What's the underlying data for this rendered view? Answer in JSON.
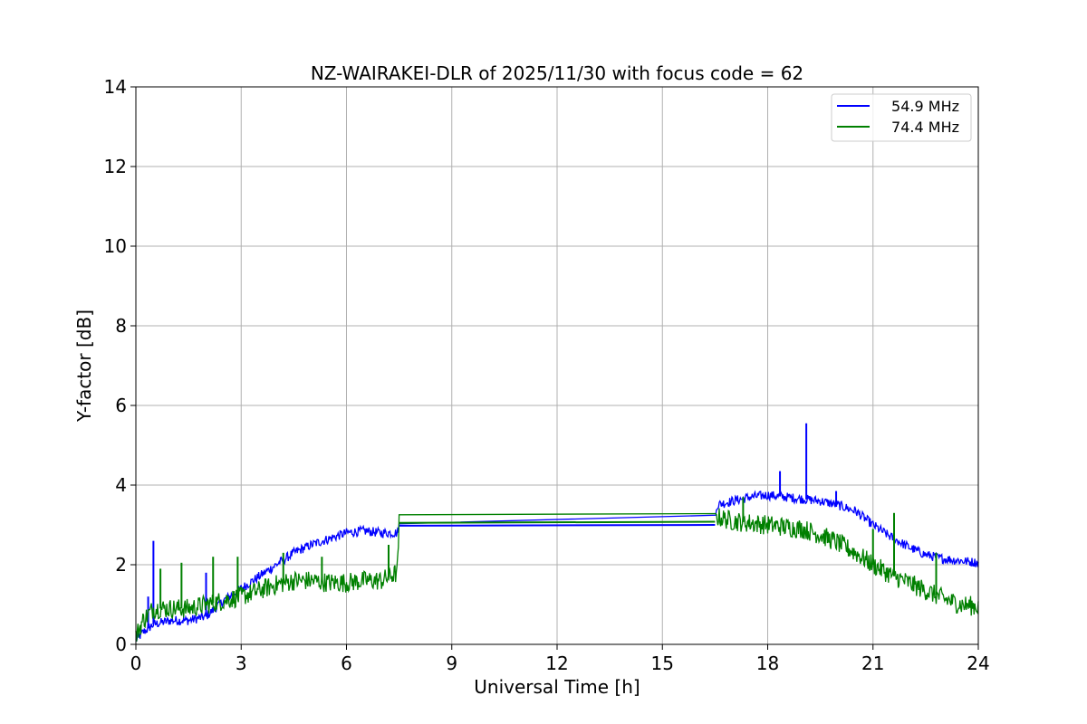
{
  "chart_data": {
    "type": "line",
    "title": "NZ-WAIRAKEI-DLR of 2025/11/30 with focus code = 62",
    "xlabel": "Universal Time [h]",
    "ylabel": "Y-factor [dB]",
    "xlim": [
      0,
      24
    ],
    "ylim": [
      0,
      14
    ],
    "xticks": [
      0,
      3,
      6,
      9,
      12,
      15,
      18,
      21,
      24
    ],
    "yticks": [
      0,
      2,
      4,
      6,
      8,
      10,
      12,
      14
    ],
    "grid": true,
    "legend_position": "top-right",
    "series": [
      {
        "name": "54.9 MHz",
        "color": "#0000ff",
        "noise": 0.12,
        "x": [
          0.0,
          0.2,
          0.5,
          1.0,
          1.5,
          2.0,
          2.5,
          3.0,
          3.5,
          4.0,
          4.5,
          5.0,
          5.5,
          6.0,
          6.5,
          7.0,
          7.45,
          7.5,
          16.5,
          16.55,
          17.0,
          17.5,
          18.0,
          18.5,
          19.0,
          19.5,
          20.0,
          20.5,
          21.0,
          21.5,
          22.0,
          22.5,
          23.0,
          23.5,
          24.0
        ],
        "y": [
          0.1,
          0.3,
          0.5,
          0.6,
          0.6,
          0.7,
          1.1,
          1.4,
          1.7,
          2.0,
          2.3,
          2.5,
          2.65,
          2.8,
          2.85,
          2.8,
          2.8,
          2.98,
          3.0,
          3.5,
          3.6,
          3.7,
          3.75,
          3.7,
          3.65,
          3.6,
          3.5,
          3.35,
          3.0,
          2.7,
          2.45,
          2.25,
          2.15,
          2.1,
          2.05
        ],
        "spikes": [
          {
            "x": 0.5,
            "y": 2.6
          },
          {
            "x": 0.35,
            "y": 1.2
          },
          {
            "x": 2.0,
            "y": 1.8
          },
          {
            "x": 18.35,
            "y": 4.35
          },
          {
            "x": 19.1,
            "y": 5.55
          },
          {
            "x": 19.95,
            "y": 3.85
          }
        ]
      },
      {
        "name": "74.4 MHz",
        "color": "#008000",
        "noise": 0.25,
        "x": [
          0.0,
          0.2,
          0.5,
          1.0,
          1.5,
          2.0,
          2.5,
          3.0,
          3.5,
          4.0,
          4.5,
          5.0,
          5.5,
          6.0,
          6.5,
          7.0,
          7.45,
          7.5,
          16.5,
          16.55,
          17.0,
          17.5,
          18.0,
          18.5,
          19.0,
          19.5,
          20.0,
          20.5,
          21.0,
          21.5,
          22.0,
          22.5,
          23.0,
          23.5,
          24.0
        ],
        "y": [
          0.2,
          0.6,
          0.9,
          0.9,
          0.9,
          1.0,
          1.1,
          1.2,
          1.35,
          1.5,
          1.6,
          1.6,
          1.55,
          1.55,
          1.6,
          1.6,
          1.8,
          3.05,
          3.08,
          3.2,
          3.1,
          3.05,
          3.0,
          2.95,
          2.9,
          2.75,
          2.55,
          2.3,
          2.0,
          1.75,
          1.55,
          1.35,
          1.15,
          1.0,
          0.95
        ],
        "spikes": [
          {
            "x": 0.7,
            "y": 1.9
          },
          {
            "x": 1.3,
            "y": 2.05
          },
          {
            "x": 2.2,
            "y": 2.2
          },
          {
            "x": 2.9,
            "y": 2.2
          },
          {
            "x": 4.2,
            "y": 2.3
          },
          {
            "x": 5.3,
            "y": 2.2
          },
          {
            "x": 7.2,
            "y": 2.5
          },
          {
            "x": 17.3,
            "y": 3.7
          },
          {
            "x": 21.0,
            "y": 2.9
          },
          {
            "x": 21.6,
            "y": 3.3
          },
          {
            "x": 22.8,
            "y": 2.3
          }
        ]
      }
    ]
  }
}
